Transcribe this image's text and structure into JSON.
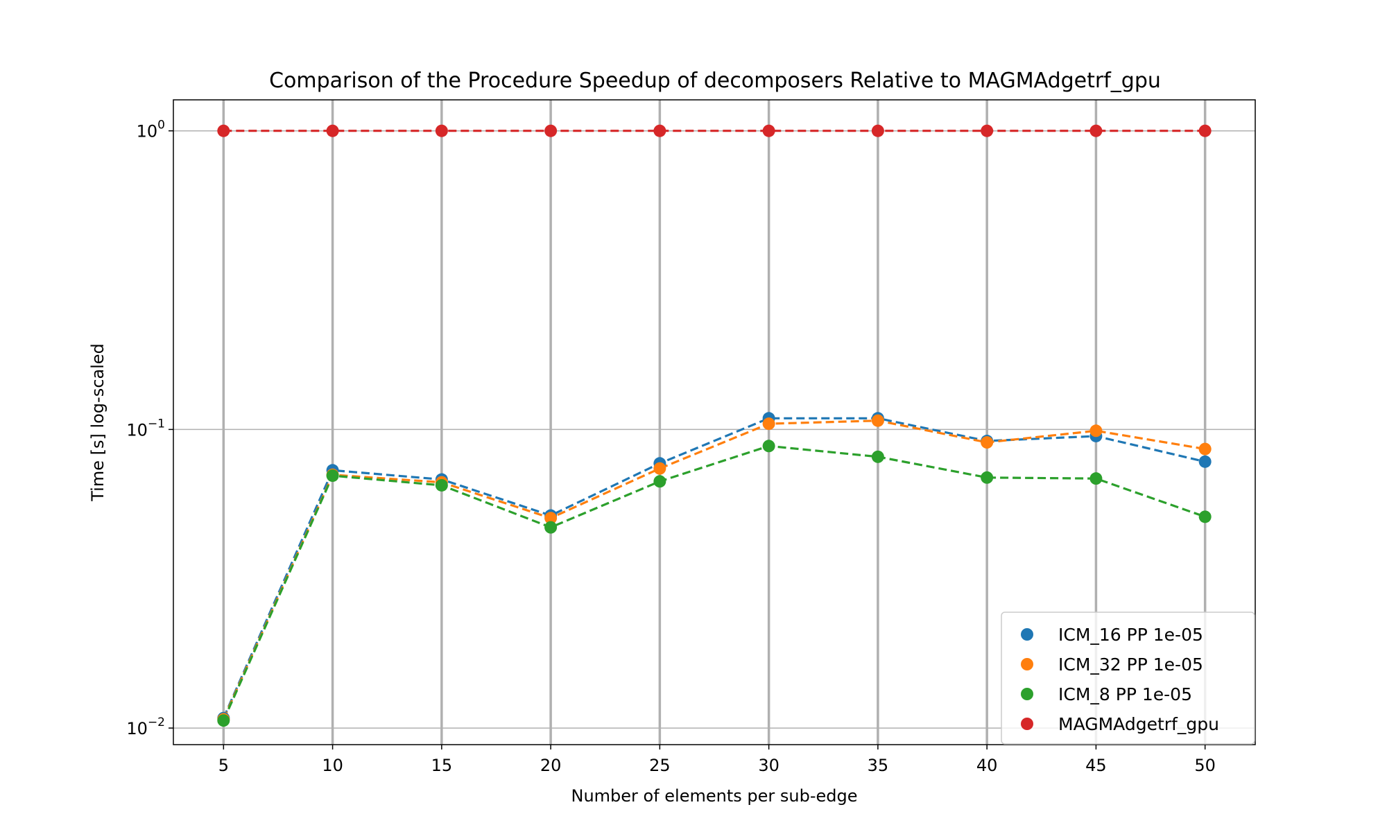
{
  "chart_data": {
    "type": "line",
    "title": "Comparison of the Procedure Speedup of decomposers Relative to MAGMAdgetrf_gpu",
    "xlabel": "Number of elements per sub-edge",
    "ylabel": "Time [s] log-scaled",
    "x": [
      5,
      10,
      15,
      20,
      25,
      30,
      35,
      40,
      45,
      50
    ],
    "xlim": [
      2.7,
      52.3
    ],
    "ylim": [
      0.0088,
      1.27
    ],
    "yscale": "log",
    "y_ticks": [
      {
        "value": 0.01,
        "base": "10",
        "exp": "−2"
      },
      {
        "value": 0.1,
        "base": "10",
        "exp": "−1"
      },
      {
        "value": 1,
        "base": "10",
        "exp": "0"
      }
    ],
    "grid": true,
    "line_style": "dashed",
    "markers": "circle",
    "legend_position": "lower-right",
    "series": [
      {
        "name": "ICM_16 PP 1e-05",
        "color": "#1f77b4",
        "values": [
          0.0108,
          0.073,
          0.068,
          0.0515,
          0.077,
          0.109,
          0.109,
          0.0915,
          0.095,
          0.078
        ]
      },
      {
        "name": "ICM_32 PP 1e-05",
        "color": "#ff7f0e",
        "values": [
          0.0107,
          0.0705,
          0.0665,
          0.0505,
          0.074,
          0.1045,
          0.107,
          0.0905,
          0.099,
          0.086
        ]
      },
      {
        "name": "ICM_8 PP 1e-05",
        "color": "#2ca02c",
        "values": [
          0.0106,
          0.07,
          0.065,
          0.047,
          0.067,
          0.088,
          0.081,
          0.069,
          0.0685,
          0.051
        ]
      },
      {
        "name": "MAGMAdgetrf_gpu",
        "color": "#d62728",
        "values": [
          1,
          1,
          1,
          1,
          1,
          1,
          1,
          1,
          1,
          1
        ]
      }
    ]
  }
}
